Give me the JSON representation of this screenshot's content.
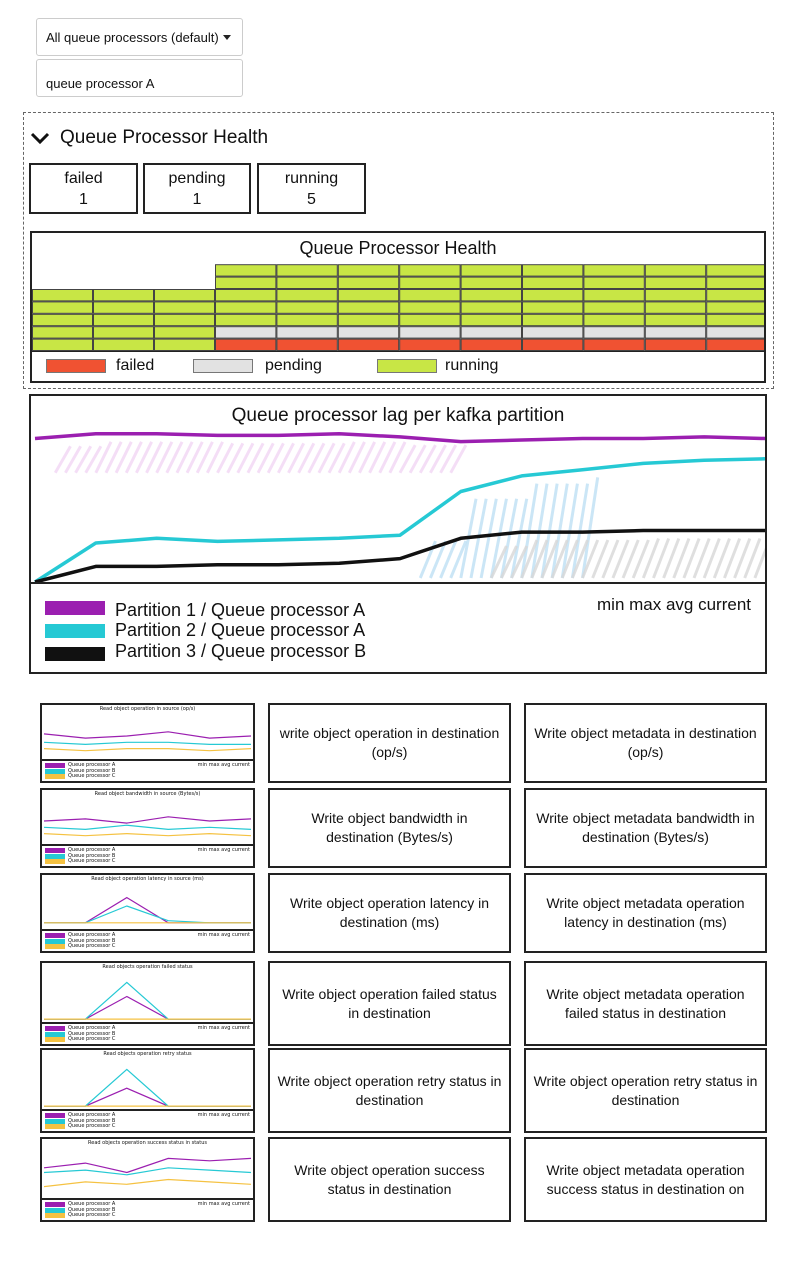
{
  "filters": {
    "processor_select_value": "All queue processors (default)",
    "processor_search_value": "queue processor A"
  },
  "health": {
    "section_title": "Queue Processor Health",
    "stats": [
      {
        "label": "failed",
        "value": "1"
      },
      {
        "label": "pending",
        "value": "1"
      },
      {
        "label": "running",
        "value": "5"
      }
    ],
    "chart_title": "Queue Processor Health",
    "legend": [
      {
        "label": "failed",
        "color": "#f05232"
      },
      {
        "label": "pending",
        "color": "#e2e2e2"
      },
      {
        "label": "running",
        "color": "#c8e645"
      }
    ]
  },
  "lag": {
    "title": "Queue processor lag per kafka partition",
    "stats_header": "min max avg current",
    "legend": [
      {
        "label": "Partition 1 / Queue processor A",
        "color": "#9b1fb0"
      },
      {
        "label": "Partition 2 / Queue processor A",
        "color": "#26c9d4"
      },
      {
        "label": "Partition 3 / Queue processor B",
        "color": "#111111"
      }
    ]
  },
  "chart_data": [
    {
      "type": "bar",
      "title": "Queue Processor Health",
      "categories": [
        "1",
        "2",
        "3",
        "4",
        "5",
        "6",
        "7",
        "8",
        "9",
        "10",
        "11",
        "12"
      ],
      "series": [
        {
          "name": "failed",
          "values": [
            0,
            0,
            0,
            1,
            1,
            1,
            1,
            1,
            1,
            1,
            1,
            1
          ]
        },
        {
          "name": "pending",
          "values": [
            0,
            0,
            0,
            1,
            1,
            1,
            1,
            1,
            1,
            1,
            1,
            1
          ]
        },
        {
          "name": "running",
          "values": [
            5,
            5,
            5,
            5,
            5,
            5,
            5,
            5,
            5,
            5,
            5,
            5
          ]
        }
      ]
    },
    {
      "type": "line",
      "title": "Queue processor lag per kafka partition",
      "x": [
        0,
        1,
        2,
        3,
        4,
        5,
        6,
        7,
        8,
        9,
        10,
        11,
        12
      ],
      "series": [
        {
          "name": "Partition 1 / Queue processor A",
          "values": [
            92,
            95,
            95,
            94,
            94,
            95,
            93,
            90,
            91,
            92,
            92,
            93,
            92
          ]
        },
        {
          "name": "Partition 2 / Queue processor A",
          "values": [
            0,
            25,
            28,
            26,
            27,
            28,
            30,
            58,
            68,
            72,
            76,
            78,
            79
          ]
        },
        {
          "name": "Partition 3 / Queue processor B",
          "values": [
            0,
            10,
            10,
            11,
            11,
            12,
            15,
            28,
            32,
            32,
            33,
            33,
            33
          ]
        }
      ]
    }
  ],
  "mini_panels": [
    {
      "title": "Read object operation in source (op/s)",
      "legend": [
        "Queue processor A",
        "Queue processor B",
        "Queue processor C"
      ],
      "stats": "min max avg current"
    },
    {
      "title": "Read object bandwidth in source (Bytes/s)",
      "legend": [
        "Queue processor A",
        "Queue processor B",
        "Queue processor C"
      ],
      "stats": "min max avg current"
    },
    {
      "title": "Read object operation latency in source (ms)",
      "legend": [
        "Queue processor A",
        "Queue processor B",
        "Queue processor C"
      ],
      "stats": "min max avg current"
    },
    {
      "title": "Read objects operation failed status",
      "legend": [
        "Queue processor A",
        "Queue processor B",
        "Queue processor C"
      ],
      "stats": "min max avg current"
    },
    {
      "title": "Read objects operation retry status",
      "legend": [
        "Queue processor A",
        "Queue processor B",
        "Queue processor C"
      ],
      "stats": "min max avg current"
    },
    {
      "title": "Read objects operation success status in status",
      "legend": [
        "Queue processor A",
        "Queue processor B",
        "Queue processor C"
      ],
      "stats": "min max avg current"
    }
  ],
  "mini_colors": [
    "#9b1fb0",
    "#26c9d4",
    "#f5c242"
  ],
  "tiles": {
    "col2": [
      "write object operation in destination (op/s)",
      "Write object bandwidth in destination (Bytes/s)",
      "Write object operation latency in destination (ms)",
      "Write object operation failed status in destination",
      "Write object operation retry status in destination",
      "Write object operation success status in destination"
    ],
    "col3": [
      "Write object metadata in destination (op/s)",
      "Write object metadata bandwidth in destination (Bytes/s)",
      "Write object metadata operation latency in destination (ms)",
      "Write object metadata operation failed status in destination",
      "Write object operation retry status in destination",
      "Write object metadata operation success status in destination on"
    ]
  },
  "icons": {
    "collapse": "chevron-down-icon",
    "dropdown": "caret-down-icon"
  }
}
